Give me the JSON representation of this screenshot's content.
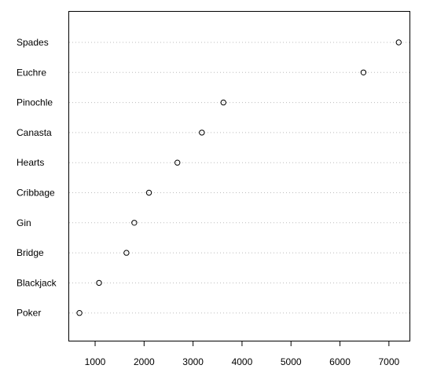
{
  "chart_data": {
    "type": "scatter",
    "title": "",
    "xlabel": "",
    "ylabel": "",
    "categories": [
      "Spades",
      "Euchre",
      "Pinochle",
      "Canasta",
      "Hearts",
      "Cribbage",
      "Gin",
      "Bridge",
      "Blackjack",
      "Poker"
    ],
    "values": [
      7200,
      6480,
      3620,
      3180,
      2680,
      2100,
      1800,
      1640,
      1080,
      680
    ],
    "xticks": [
      "1000",
      "2000",
      "3000",
      "4000",
      "5000",
      "6000",
      "7000"
    ],
    "xlim": [
      470,
      7420
    ],
    "grid": "horizontal-dotted",
    "marker": "open-circle",
    "colors": {
      "point_stroke": "#000000",
      "gridline": "#bbbbbb",
      "frame": "#000000"
    }
  }
}
